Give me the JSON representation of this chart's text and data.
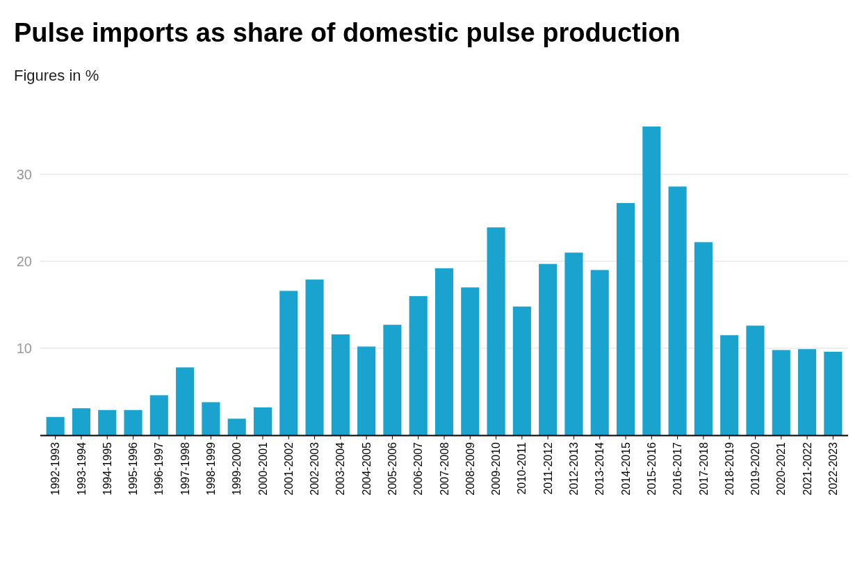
{
  "chart_data": {
    "type": "bar",
    "title": "Pulse imports as share of domestic pulse production",
    "subtitle": "Figures in %",
    "categories": [
      "1992-1993",
      "1993-1994",
      "1994-1995",
      "1995-1996",
      "1996-1997",
      "1997-1998",
      "1998-1999",
      "1999-2000",
      "2000-2001",
      "2001-2002",
      "2002-2003",
      "2003-2004",
      "2004-2005",
      "2005-2006",
      "2006-2007",
      "2007-2008",
      "2008-2009",
      "2009-2010",
      "2010-2011",
      "2011-2012",
      "2012-2013",
      "2013-2014",
      "2014-2015",
      "2015-2016",
      "2016-2017",
      "2017-2018",
      "2018-2019",
      "2019-2020",
      "2020-2021",
      "2021-2022",
      "2022-2023"
    ],
    "values": [
      2.1,
      3.1,
      2.9,
      2.9,
      4.6,
      7.8,
      3.8,
      1.9,
      3.2,
      16.6,
      17.9,
      11.6,
      10.2,
      12.7,
      16.0,
      19.2,
      17.0,
      23.9,
      14.8,
      19.7,
      21.0,
      19.0,
      26.7,
      35.5,
      28.6,
      22.2,
      11.5,
      12.6,
      9.8,
      9.9,
      9.6
    ],
    "color": "#1ba3cf",
    "ylim": [
      0,
      35.5
    ],
    "yticks": [
      {
        "value": 0,
        "label": null
      },
      10,
      20,
      30
    ],
    "grid": "y"
  }
}
